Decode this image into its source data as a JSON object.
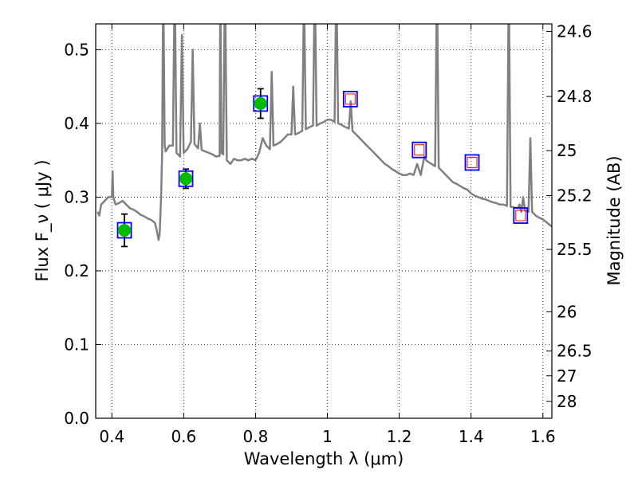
{
  "chart_data": {
    "type": "line",
    "xlabel": "Wavelength  λ (μm)",
    "ylabel": "Flux  F_ν  ( μJy )",
    "y2label": "Magnitude (AB)",
    "xlim": [
      0.355,
      1.625
    ],
    "ylim": [
      0.0,
      0.535
    ],
    "grid": true,
    "x_ticks": [
      "0.4",
      "0.6",
      "0.8",
      "1",
      "1.2",
      "1.4",
      "1.6"
    ],
    "y_ticks": [
      "0.0",
      "0.1",
      "0.2",
      "0.3",
      "0.4",
      "0.5"
    ],
    "y2_ticks": [
      "24.6",
      "24.8",
      "25",
      "25.2",
      "25.5",
      "26",
      "26.5",
      "27",
      "28"
    ],
    "colors": {
      "spectrum": "#808080",
      "measured_fill": "#00bb00",
      "model_box": "#0000ff",
      "inner_box": "#ff0000",
      "errorbar": "#000000"
    },
    "spectrum": [
      [
        0.36,
        0.28
      ],
      [
        0.365,
        0.275
      ],
      [
        0.37,
        0.29
      ],
      [
        0.38,
        0.295
      ],
      [
        0.39,
        0.3
      ],
      [
        0.4,
        0.3
      ],
      [
        0.402,
        0.335
      ],
      [
        0.404,
        0.3
      ],
      [
        0.41,
        0.29
      ],
      [
        0.42,
        0.292
      ],
      [
        0.43,
        0.295
      ],
      [
        0.44,
        0.29
      ],
      [
        0.45,
        0.285
      ],
      [
        0.46,
        0.283
      ],
      [
        0.47,
        0.28
      ],
      [
        0.48,
        0.276
      ],
      [
        0.49,
        0.274
      ],
      [
        0.5,
        0.271
      ],
      [
        0.51,
        0.269
      ],
      [
        0.52,
        0.265
      ],
      [
        0.525,
        0.255
      ],
      [
        0.53,
        0.242
      ],
      [
        0.533,
        0.25
      ],
      [
        0.537,
        0.3
      ],
      [
        0.54,
        0.36
      ],
      [
        0.543,
        0.6
      ],
      [
        0.547,
        0.37
      ],
      [
        0.55,
        0.362
      ],
      [
        0.56,
        0.37
      ],
      [
        0.57,
        0.37
      ],
      [
        0.575,
        0.6
      ],
      [
        0.58,
        0.36
      ],
      [
        0.59,
        0.355
      ],
      [
        0.595,
        0.52
      ],
      [
        0.6,
        0.36
      ],
      [
        0.61,
        0.365
      ],
      [
        0.62,
        0.375
      ],
      [
        0.625,
        0.5
      ],
      [
        0.63,
        0.372
      ],
      [
        0.64,
        0.366
      ],
      [
        0.645,
        0.4
      ],
      [
        0.65,
        0.364
      ],
      [
        0.66,
        0.362
      ],
      [
        0.67,
        0.36
      ],
      [
        0.68,
        0.358
      ],
      [
        0.69,
        0.355
      ],
      [
        0.7,
        0.356
      ],
      [
        0.702,
        0.6
      ],
      [
        0.705,
        0.36
      ],
      [
        0.71,
        0.358
      ],
      [
        0.715,
        0.6
      ],
      [
        0.72,
        0.35
      ],
      [
        0.73,
        0.345
      ],
      [
        0.74,
        0.352
      ],
      [
        0.75,
        0.35
      ],
      [
        0.76,
        0.35
      ],
      [
        0.77,
        0.352
      ],
      [
        0.78,
        0.35
      ],
      [
        0.79,
        0.352
      ],
      [
        0.8,
        0.35
      ],
      [
        0.81,
        0.36
      ],
      [
        0.82,
        0.38
      ],
      [
        0.83,
        0.37
      ],
      [
        0.84,
        0.365
      ],
      [
        0.845,
        0.47
      ],
      [
        0.85,
        0.37
      ],
      [
        0.86,
        0.372
      ],
      [
        0.87,
        0.375
      ],
      [
        0.88,
        0.38
      ],
      [
        0.89,
        0.385
      ],
      [
        0.9,
        0.385
      ],
      [
        0.905,
        0.45
      ],
      [
        0.91,
        0.385
      ],
      [
        0.92,
        0.387
      ],
      [
        0.93,
        0.39
      ],
      [
        0.935,
        0.58
      ],
      [
        0.94,
        0.392
      ],
      [
        0.95,
        0.395
      ],
      [
        0.96,
        0.397
      ],
      [
        0.965,
        0.6
      ],
      [
        0.97,
        0.397
      ],
      [
        0.98,
        0.4
      ],
      [
        0.99,
        0.402
      ],
      [
        1.0,
        0.405
      ],
      [
        1.01,
        0.405
      ],
      [
        1.02,
        0.402
      ],
      [
        1.025,
        0.6
      ],
      [
        1.03,
        0.4
      ],
      [
        1.04,
        0.398
      ],
      [
        1.05,
        0.395
      ],
      [
        1.06,
        0.393
      ],
      [
        1.065,
        0.43
      ],
      [
        1.07,
        0.39
      ],
      [
        1.08,
        0.385
      ],
      [
        1.09,
        0.38
      ],
      [
        1.1,
        0.375
      ],
      [
        1.11,
        0.37
      ],
      [
        1.12,
        0.365
      ],
      [
        1.13,
        0.36
      ],
      [
        1.14,
        0.355
      ],
      [
        1.15,
        0.35
      ],
      [
        1.16,
        0.345
      ],
      [
        1.17,
        0.342
      ],
      [
        1.18,
        0.338
      ],
      [
        1.19,
        0.335
      ],
      [
        1.2,
        0.332
      ],
      [
        1.21,
        0.33
      ],
      [
        1.22,
        0.33
      ],
      [
        1.23,
        0.332
      ],
      [
        1.24,
        0.33
      ],
      [
        1.25,
        0.345
      ],
      [
        1.26,
        0.33
      ],
      [
        1.27,
        0.355
      ],
      [
        1.275,
        0.35
      ],
      [
        1.28,
        0.348
      ],
      [
        1.29,
        0.345
      ],
      [
        1.3,
        0.342
      ],
      [
        1.305,
        0.6
      ],
      [
        1.31,
        0.34
      ],
      [
        1.32,
        0.335
      ],
      [
        1.33,
        0.33
      ],
      [
        1.34,
        0.325
      ],
      [
        1.35,
        0.32
      ],
      [
        1.36,
        0.318
      ],
      [
        1.37,
        0.315
      ],
      [
        1.38,
        0.312
      ],
      [
        1.39,
        0.31
      ],
      [
        1.4,
        0.305
      ],
      [
        1.41,
        0.302
      ],
      [
        1.42,
        0.3
      ],
      [
        1.43,
        0.298
      ],
      [
        1.44,
        0.297
      ],
      [
        1.45,
        0.295
      ],
      [
        1.46,
        0.293
      ],
      [
        1.47,
        0.292
      ],
      [
        1.48,
        0.29
      ],
      [
        1.49,
        0.29
      ],
      [
        1.5,
        0.288
      ],
      [
        1.505,
        0.6
      ],
      [
        1.51,
        0.287
      ],
      [
        1.52,
        0.286
      ],
      [
        1.53,
        0.285
      ],
      [
        1.535,
        0.29
      ],
      [
        1.54,
        0.28
      ],
      [
        1.545,
        0.3
      ],
      [
        1.55,
        0.282
      ],
      [
        1.56,
        0.28
      ],
      [
        1.565,
        0.38
      ],
      [
        1.57,
        0.28
      ],
      [
        1.58,
        0.275
      ],
      [
        1.59,
        0.272
      ],
      [
        1.6,
        0.27
      ],
      [
        1.61,
        0.266
      ],
      [
        1.62,
        0.262
      ],
      [
        1.625,
        0.26
      ]
    ],
    "measured": [
      {
        "x": 0.435,
        "y": 0.255,
        "yerr": 0.022
      },
      {
        "x": 0.606,
        "y": 0.325,
        "yerr": 0.013
      },
      {
        "x": 0.814,
        "y": 0.427,
        "yerr": 0.02
      }
    ],
    "model_boxes": [
      {
        "x": 0.435,
        "y": 0.255,
        "inner": false
      },
      {
        "x": 0.606,
        "y": 0.325,
        "inner": false
      },
      {
        "x": 0.814,
        "y": 0.427,
        "inner": false
      },
      {
        "x": 1.064,
        "y": 0.433,
        "inner": true
      },
      {
        "x": 1.256,
        "y": 0.364,
        "inner": true
      },
      {
        "x": 1.403,
        "y": 0.347,
        "inner": true
      },
      {
        "x": 1.538,
        "y": 0.275,
        "inner": true
      }
    ]
  }
}
